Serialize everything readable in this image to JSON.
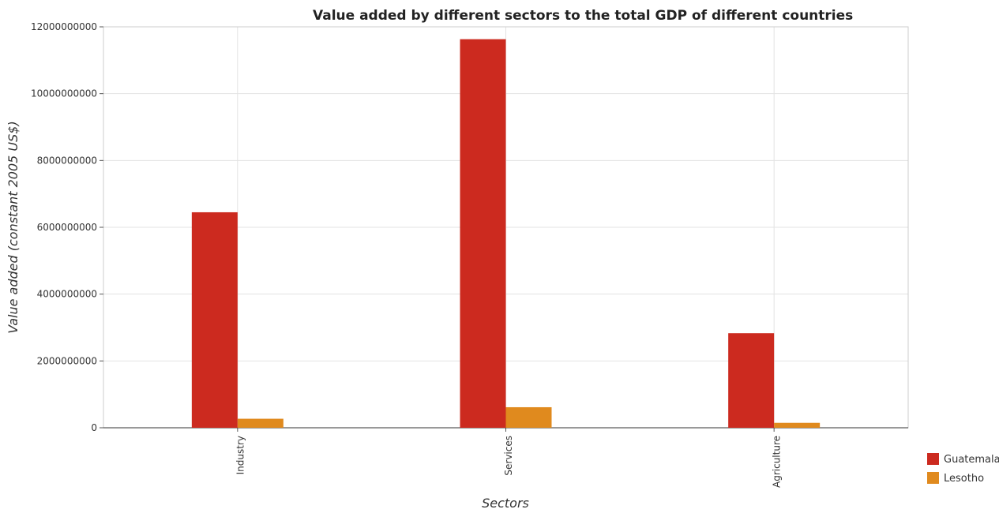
{
  "chart_data": {
    "type": "bar",
    "title": "Value added by different sectors to the total GDP of different countries",
    "xlabel": "Sectors",
    "ylabel": "Value added (constant 2005 US$)",
    "categories": [
      "Industry",
      "Services",
      "Agriculture"
    ],
    "series": [
      {
        "name": "Guatemala",
        "color": "#cc2a1f",
        "values": [
          6450000000,
          11630000000,
          2830000000
        ]
      },
      {
        "name": "Lesotho",
        "color": "#e08a1e",
        "values": [
          270000000,
          615000000,
          148000000
        ]
      }
    ],
    "ylim": [
      0,
      12000000000
    ],
    "yticks": [
      0,
      2000000000,
      4000000000,
      6000000000,
      8000000000,
      10000000000,
      12000000000
    ],
    "ytick_labels": [
      "0",
      "2000000000",
      "4000000000",
      "6000000000",
      "8000000000",
      "10000000000",
      "12000000000"
    ],
    "grid": true,
    "legend_position": "bottom-right"
  }
}
